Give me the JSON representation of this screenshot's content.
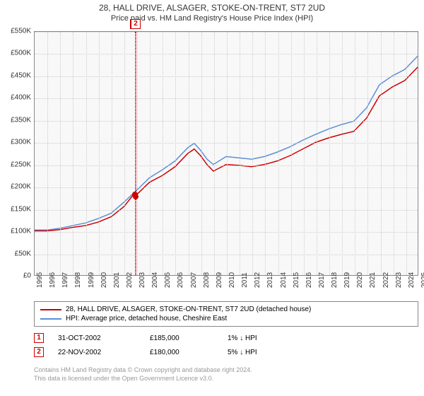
{
  "title": "28, HALL DRIVE, ALSAGER, STOKE-ON-TRENT, ST7 2UD",
  "subtitle": "Price paid vs. HM Land Registry's House Price Index (HPI)",
  "chart": {
    "type": "line",
    "background_color": "#f8f8f8",
    "grid_color": "#cccccc",
    "border_color": "#888888",
    "ylim": [
      0,
      550000
    ],
    "ytick_step": 50000,
    "ytick_labels": [
      "£0",
      "£50K",
      "£100K",
      "£150K",
      "£200K",
      "£250K",
      "£300K",
      "£350K",
      "£400K",
      "£450K",
      "£500K",
      "£550K"
    ],
    "xlim": [
      1995,
      2025
    ],
    "xtick_step": 1,
    "xtick_labels": [
      "1995",
      "1996",
      "1997",
      "1998",
      "1999",
      "2000",
      "2001",
      "2002",
      "2003",
      "2004",
      "2005",
      "2006",
      "2007",
      "2008",
      "2009",
      "2010",
      "2011",
      "2012",
      "2013",
      "2014",
      "2015",
      "2016",
      "2017",
      "2018",
      "2019",
      "2020",
      "2021",
      "2022",
      "2023",
      "2024",
      "2025"
    ],
    "series": [
      {
        "name": "property",
        "label": "28, HALL DRIVE, ALSAGER, STOKE-ON-TRENT, ST7 2UD (detached house)",
        "color": "#cc0000",
        "line_width": 1.5,
        "x": [
          1995,
          1996,
          1997,
          1998,
          1999,
          2000,
          2001,
          2002,
          2002.83,
          2002.89,
          2003,
          2004,
          2005,
          2006,
          2007,
          2007.5,
          2008,
          2008.5,
          2009,
          2010,
          2011,
          2012,
          2013,
          2014,
          2015,
          2016,
          2017,
          2018,
          2019,
          2020,
          2021,
          2022,
          2023,
          2024,
          2025
        ],
        "y": [
          100000,
          100000,
          103000,
          108000,
          112000,
          120000,
          132000,
          155000,
          185000,
          180000,
          182000,
          210000,
          225000,
          245000,
          275000,
          285000,
          270000,
          250000,
          235000,
          250000,
          248000,
          245000,
          250000,
          258000,
          270000,
          285000,
          300000,
          310000,
          318000,
          325000,
          355000,
          405000,
          425000,
          440000,
          470000
        ]
      },
      {
        "name": "hpi",
        "label": "HPI: Average price, detached house, Cheshire East",
        "color": "#5b8fd6",
        "line_width": 1.5,
        "x": [
          1995,
          1996,
          1997,
          1998,
          1999,
          2000,
          2001,
          2002,
          2003,
          2004,
          2005,
          2006,
          2007,
          2007.5,
          2008,
          2008.5,
          2009,
          2010,
          2011,
          2012,
          2013,
          2014,
          2015,
          2016,
          2017,
          2018,
          2019,
          2020,
          2021,
          2022,
          2023,
          2024,
          2025
        ],
        "y": [
          102000,
          102000,
          106000,
          112000,
          118000,
          128000,
          140000,
          165000,
          192000,
          220000,
          238000,
          258000,
          288000,
          298000,
          282000,
          262000,
          250000,
          268000,
          265000,
          262000,
          268000,
          278000,
          290000,
          305000,
          318000,
          330000,
          340000,
          348000,
          378000,
          430000,
          450000,
          465000,
          495000
        ]
      }
    ],
    "sale_markers": [
      {
        "n": "1",
        "x": 2002.83,
        "y": 185000
      },
      {
        "n": "2",
        "x": 2002.89,
        "y": 180000
      }
    ]
  },
  "legend": {
    "items": [
      {
        "color": "#cc0000",
        "label": "28, HALL DRIVE, ALSAGER, STOKE-ON-TRENT, ST7 2UD (detached house)"
      },
      {
        "color": "#5b8fd6",
        "label": "HPI: Average price, detached house, Cheshire East"
      }
    ]
  },
  "sales": [
    {
      "n": "1",
      "date": "31-OCT-2002",
      "price": "£185,000",
      "pct": "1% ↓ HPI"
    },
    {
      "n": "2",
      "date": "22-NOV-2002",
      "price": "£180,000",
      "pct": "5% ↓ HPI"
    }
  ],
  "footer": {
    "line1": "Contains HM Land Registry data © Crown copyright and database right 2024.",
    "line2": "This data is licensed under the Open Government Licence v3.0."
  }
}
